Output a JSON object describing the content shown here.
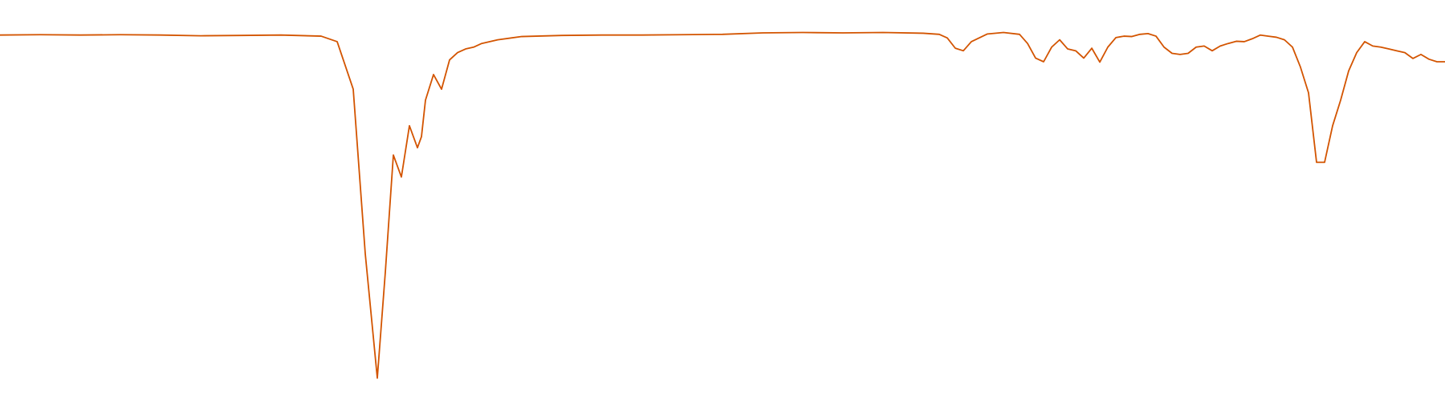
{
  "chart_data": {
    "type": "line",
    "title": "",
    "xlabel": "",
    "ylabel": "",
    "xlim": [
      0,
      1800
    ],
    "ylim": [
      0,
      1
    ],
    "grid": false,
    "legend": "none",
    "series": [
      {
        "color": "#d35400",
        "x": [
          0,
          50,
          100,
          150,
          200,
          250,
          300,
          350,
          400,
          420,
          440,
          455,
          470,
          480,
          490,
          500,
          510,
          520,
          525,
          530,
          540,
          550,
          560,
          570,
          580,
          590,
          600,
          620,
          650,
          700,
          750,
          800,
          850,
          900,
          950,
          1000,
          1050,
          1100,
          1150,
          1170,
          1180,
          1190,
          1200,
          1210,
          1230,
          1250,
          1270,
          1280,
          1290,
          1300,
          1310,
          1320,
          1330,
          1340,
          1350,
          1360,
          1370,
          1380,
          1390,
          1400,
          1410,
          1420,
          1430,
          1440,
          1450,
          1460,
          1470,
          1480,
          1490,
          1500,
          1510,
          1520,
          1530,
          1540,
          1550,
          1560,
          1570,
          1580,
          1590,
          1600,
          1610,
          1620,
          1630,
          1640,
          1650,
          1660,
          1670,
          1680,
          1690,
          1700,
          1710,
          1720,
          1730,
          1740,
          1750,
          1760,
          1770,
          1780,
          1790,
          1800
        ],
        "y": [
          0.948,
          0.949,
          0.948,
          0.949,
          0.948,
          0.946,
          0.947,
          0.948,
          0.945,
          0.93,
          0.8,
          0.35,
          0.01,
          0.3,
          0.62,
          0.56,
          0.7,
          0.64,
          0.67,
          0.77,
          0.84,
          0.8,
          0.88,
          0.9,
          0.91,
          0.915,
          0.925,
          0.935,
          0.944,
          0.947,
          0.948,
          0.948,
          0.949,
          0.95,
          0.954,
          0.955,
          0.954,
          0.955,
          0.953,
          0.95,
          0.94,
          0.912,
          0.905,
          0.93,
          0.951,
          0.955,
          0.95,
          0.925,
          0.885,
          0.875,
          0.915,
          0.935,
          0.91,
          0.905,
          0.885,
          0.912,
          0.874,
          0.915,
          0.941,
          0.945,
          0.944,
          0.95,
          0.952,
          0.945,
          0.915,
          0.898,
          0.895,
          0.898,
          0.915,
          0.918,
          0.905,
          0.918,
          0.925,
          0.931,
          0.93,
          0.938,
          0.948,
          0.945,
          0.942,
          0.935,
          0.915,
          0.86,
          0.79,
          0.6,
          0.6,
          0.7,
          0.77,
          0.85,
          0.9,
          0.93,
          0.918,
          0.915,
          0.91,
          0.905,
          0.9,
          0.884,
          0.895,
          0.882,
          0.875,
          0.875
        ]
      }
    ]
  }
}
